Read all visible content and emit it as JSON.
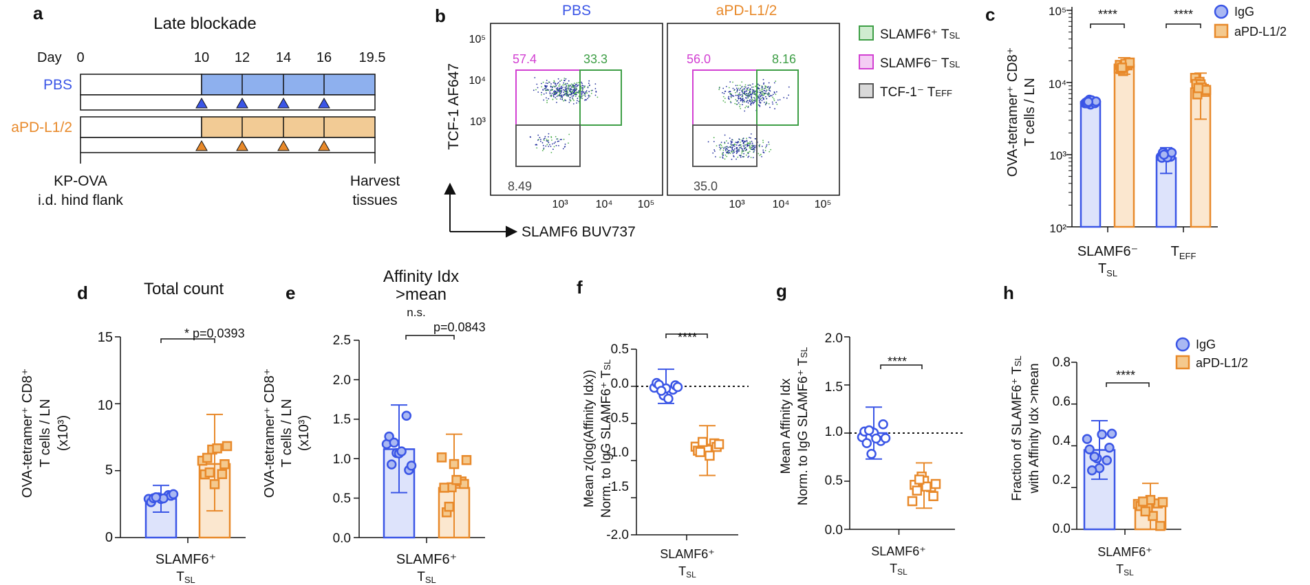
{
  "colors": {
    "blue": "#3a55e6",
    "orange": "#e8892a",
    "blue_fill": "#aab8f2",
    "orange_fill": "#f4c98e",
    "magenta": "#d23fd2",
    "green": "#3d9e45",
    "gray": "#555555",
    "timeline_blue": "#8eb0ee",
    "timeline_orange": "#f2cb95"
  },
  "panel_labels": {
    "a": "a",
    "b": "b",
    "c": "c",
    "d": "d",
    "e": "e",
    "f": "f",
    "g": "g",
    "h": "h"
  },
  "panel_a": {
    "title": "Late blockade",
    "day_label": "Day",
    "days": [
      "0",
      "10",
      "12",
      "14",
      "16",
      "19.5"
    ],
    "group_pbs": "PBS",
    "group_pd": "aPD-L1/2",
    "start_label_1": "KP-OVA",
    "start_label_2": "i.d. hind flank",
    "end_label_1": "Harvest",
    "end_label_2": "tissues"
  },
  "panel_b": {
    "col1": "PBS",
    "col2": "aPD-L1/2",
    "ylabel": "TCF-1 AF647",
    "xlabel": "SLAMF6 BUV737",
    "yticks": [
      "10⁵",
      "10⁴",
      "10³"
    ],
    "xticks": [
      "10³",
      "10⁴",
      "10⁵"
    ],
    "pbs": {
      "magenta": "57.4",
      "green": "33.3",
      "gray": "8.49"
    },
    "pd": {
      "magenta": "56.0",
      "green": "8.16",
      "gray": "35.0"
    },
    "legend": [
      "SLAMF6⁺ T",
      "SLAMF6⁻ T",
      "TCF-1⁻ T"
    ],
    "legend_sub": [
      "SL",
      "SL",
      "EFF"
    ]
  },
  "panel_c": {
    "ylabel_1": "OVA-tetramer⁺ CD8⁺",
    "ylabel_2": "T cells / LN",
    "yticks": [
      "10⁵",
      "10⁴",
      "10³",
      "10²"
    ],
    "cat1": "SLAMF6⁻",
    "cat1_sub": "T",
    "cat1_sub2": "SL",
    "cat2": "T",
    "cat2_sub": "EFF",
    "sig": "****",
    "legend_igg": "IgG",
    "legend_pd": "aPD-L1/2"
  },
  "panel_d": {
    "title": "Total count",
    "ylabel_1": "OVA-tetramer⁺ CD8⁺",
    "ylabel_2": "T cells / LN",
    "ylabel_3": "(x10³)",
    "yticks": [
      "15",
      "10",
      "5",
      "0"
    ],
    "pval": "* p=0.0393",
    "xlabel": "SLAMF6⁺",
    "xsub": "T",
    "xsub2": "SL"
  },
  "panel_e": {
    "title_1": "Affinity Idx",
    "title_2": ">mean",
    "ylabel_1": "OVA-tetramer⁺ CD8⁺",
    "ylabel_2": "T cells / LN",
    "ylabel_3": "(x10³)",
    "yticks": [
      "2.5",
      "2.0",
      "1.5",
      "1.0",
      "0.5",
      "0.0"
    ],
    "ns": "n.s.",
    "pval": "p=0.0843",
    "xlabel": "SLAMF6⁺",
    "xsub": "T",
    "xsub2": "SL"
  },
  "panel_f": {
    "ylabel_1": "Mean z(log(Affinity Idx))",
    "ylabel_2": "Norm. to IgG SLAMF6⁺ T",
    "ylabel_sub": "SL",
    "yticks": [
      "0.5",
      "0.0",
      "-0.5",
      "-1.0",
      "-1.5",
      "-2.0"
    ],
    "sig": "****",
    "xlabel": "SLAMF6⁺",
    "xsub": "T",
    "xsub2": "SL"
  },
  "panel_g": {
    "ylabel_1": "Mean Affinity Idx",
    "ylabel_2": "Norm. to IgG SLAMF6⁺ T",
    "ylabel_sub": "SL",
    "yticks": [
      "2.0",
      "1.5",
      "1.0",
      "0.5",
      "0.0"
    ],
    "sig": "****",
    "xlabel": "SLAMF6⁺",
    "xsub": "T",
    "xsub2": "SL"
  },
  "panel_h": {
    "ylabel_1": "Fraction of SLAMF6⁺ T",
    "ylabel_sub": "SL",
    "ylabel_2": "with Affinity Idx >mean",
    "yticks": [
      "0.8",
      "0.6",
      "0.4",
      "0.2",
      "0.0"
    ],
    "sig": "****",
    "xlabel": "SLAMF6⁺",
    "xsub": "T",
    "xsub2": "SL",
    "legend_igg": "IgG",
    "legend_pd": "aPD-L1/2"
  },
  "chart_data": [
    {
      "type": "bar",
      "id": "c",
      "yscale": "log",
      "ylim": [
        100,
        100000
      ],
      "categories": [
        "SLAMF6- TSL",
        "TEFF"
      ],
      "series": [
        {
          "name": "IgG",
          "values": [
            5400,
            900
          ],
          "sd": [
            700,
            350
          ]
        },
        {
          "name": "aPD-L1/2",
          "values": [
            17500,
            8300
          ],
          "sd": [
            4500,
            5200
          ]
        }
      ]
    },
    {
      "type": "bar",
      "id": "d",
      "title": "Total count",
      "ylim": [
        0,
        15
      ],
      "categories": [
        "IgG",
        "aPD-L1/2"
      ],
      "values": [
        2.9,
        5.5
      ],
      "err": [
        [
          1.9,
          3.9
        ],
        [
          2.0,
          9.2
        ]
      ]
    },
    {
      "type": "bar",
      "id": "e",
      "title": "Affinity Idx >mean",
      "ylim": [
        0,
        2.5
      ],
      "categories": [
        "IgG",
        "aPD-L1/2"
      ],
      "values": [
        1.12,
        0.63
      ],
      "err": [
        [
          0.57,
          1.68
        ],
        [
          0.0,
          1.31
        ]
      ]
    },
    {
      "type": "scatter",
      "id": "f",
      "ylim": [
        -2.0,
        0.5
      ],
      "categories": [
        "IgG",
        "aPD-L1/2"
      ],
      "values": [
        0.0,
        -0.86
      ],
      "err": [
        [
          -0.23,
          0.23
        ],
        [
          -1.2,
          -0.53
        ]
      ]
    },
    {
      "type": "scatter",
      "id": "g",
      "ylim": [
        0,
        2.0
      ],
      "categories": [
        "IgG",
        "aPD-L1/2"
      ],
      "values": [
        1.0,
        0.46
      ],
      "err": [
        [
          0.73,
          1.27
        ],
        [
          0.22,
          0.69
        ]
      ]
    },
    {
      "type": "bar",
      "id": "h",
      "ylim": [
        0,
        0.8
      ],
      "categories": [
        "IgG",
        "aPD-L1/2"
      ],
      "values": [
        0.38,
        0.11
      ],
      "err": [
        [
          0.24,
          0.52
        ],
        [
          0.0,
          0.22
        ]
      ]
    }
  ]
}
